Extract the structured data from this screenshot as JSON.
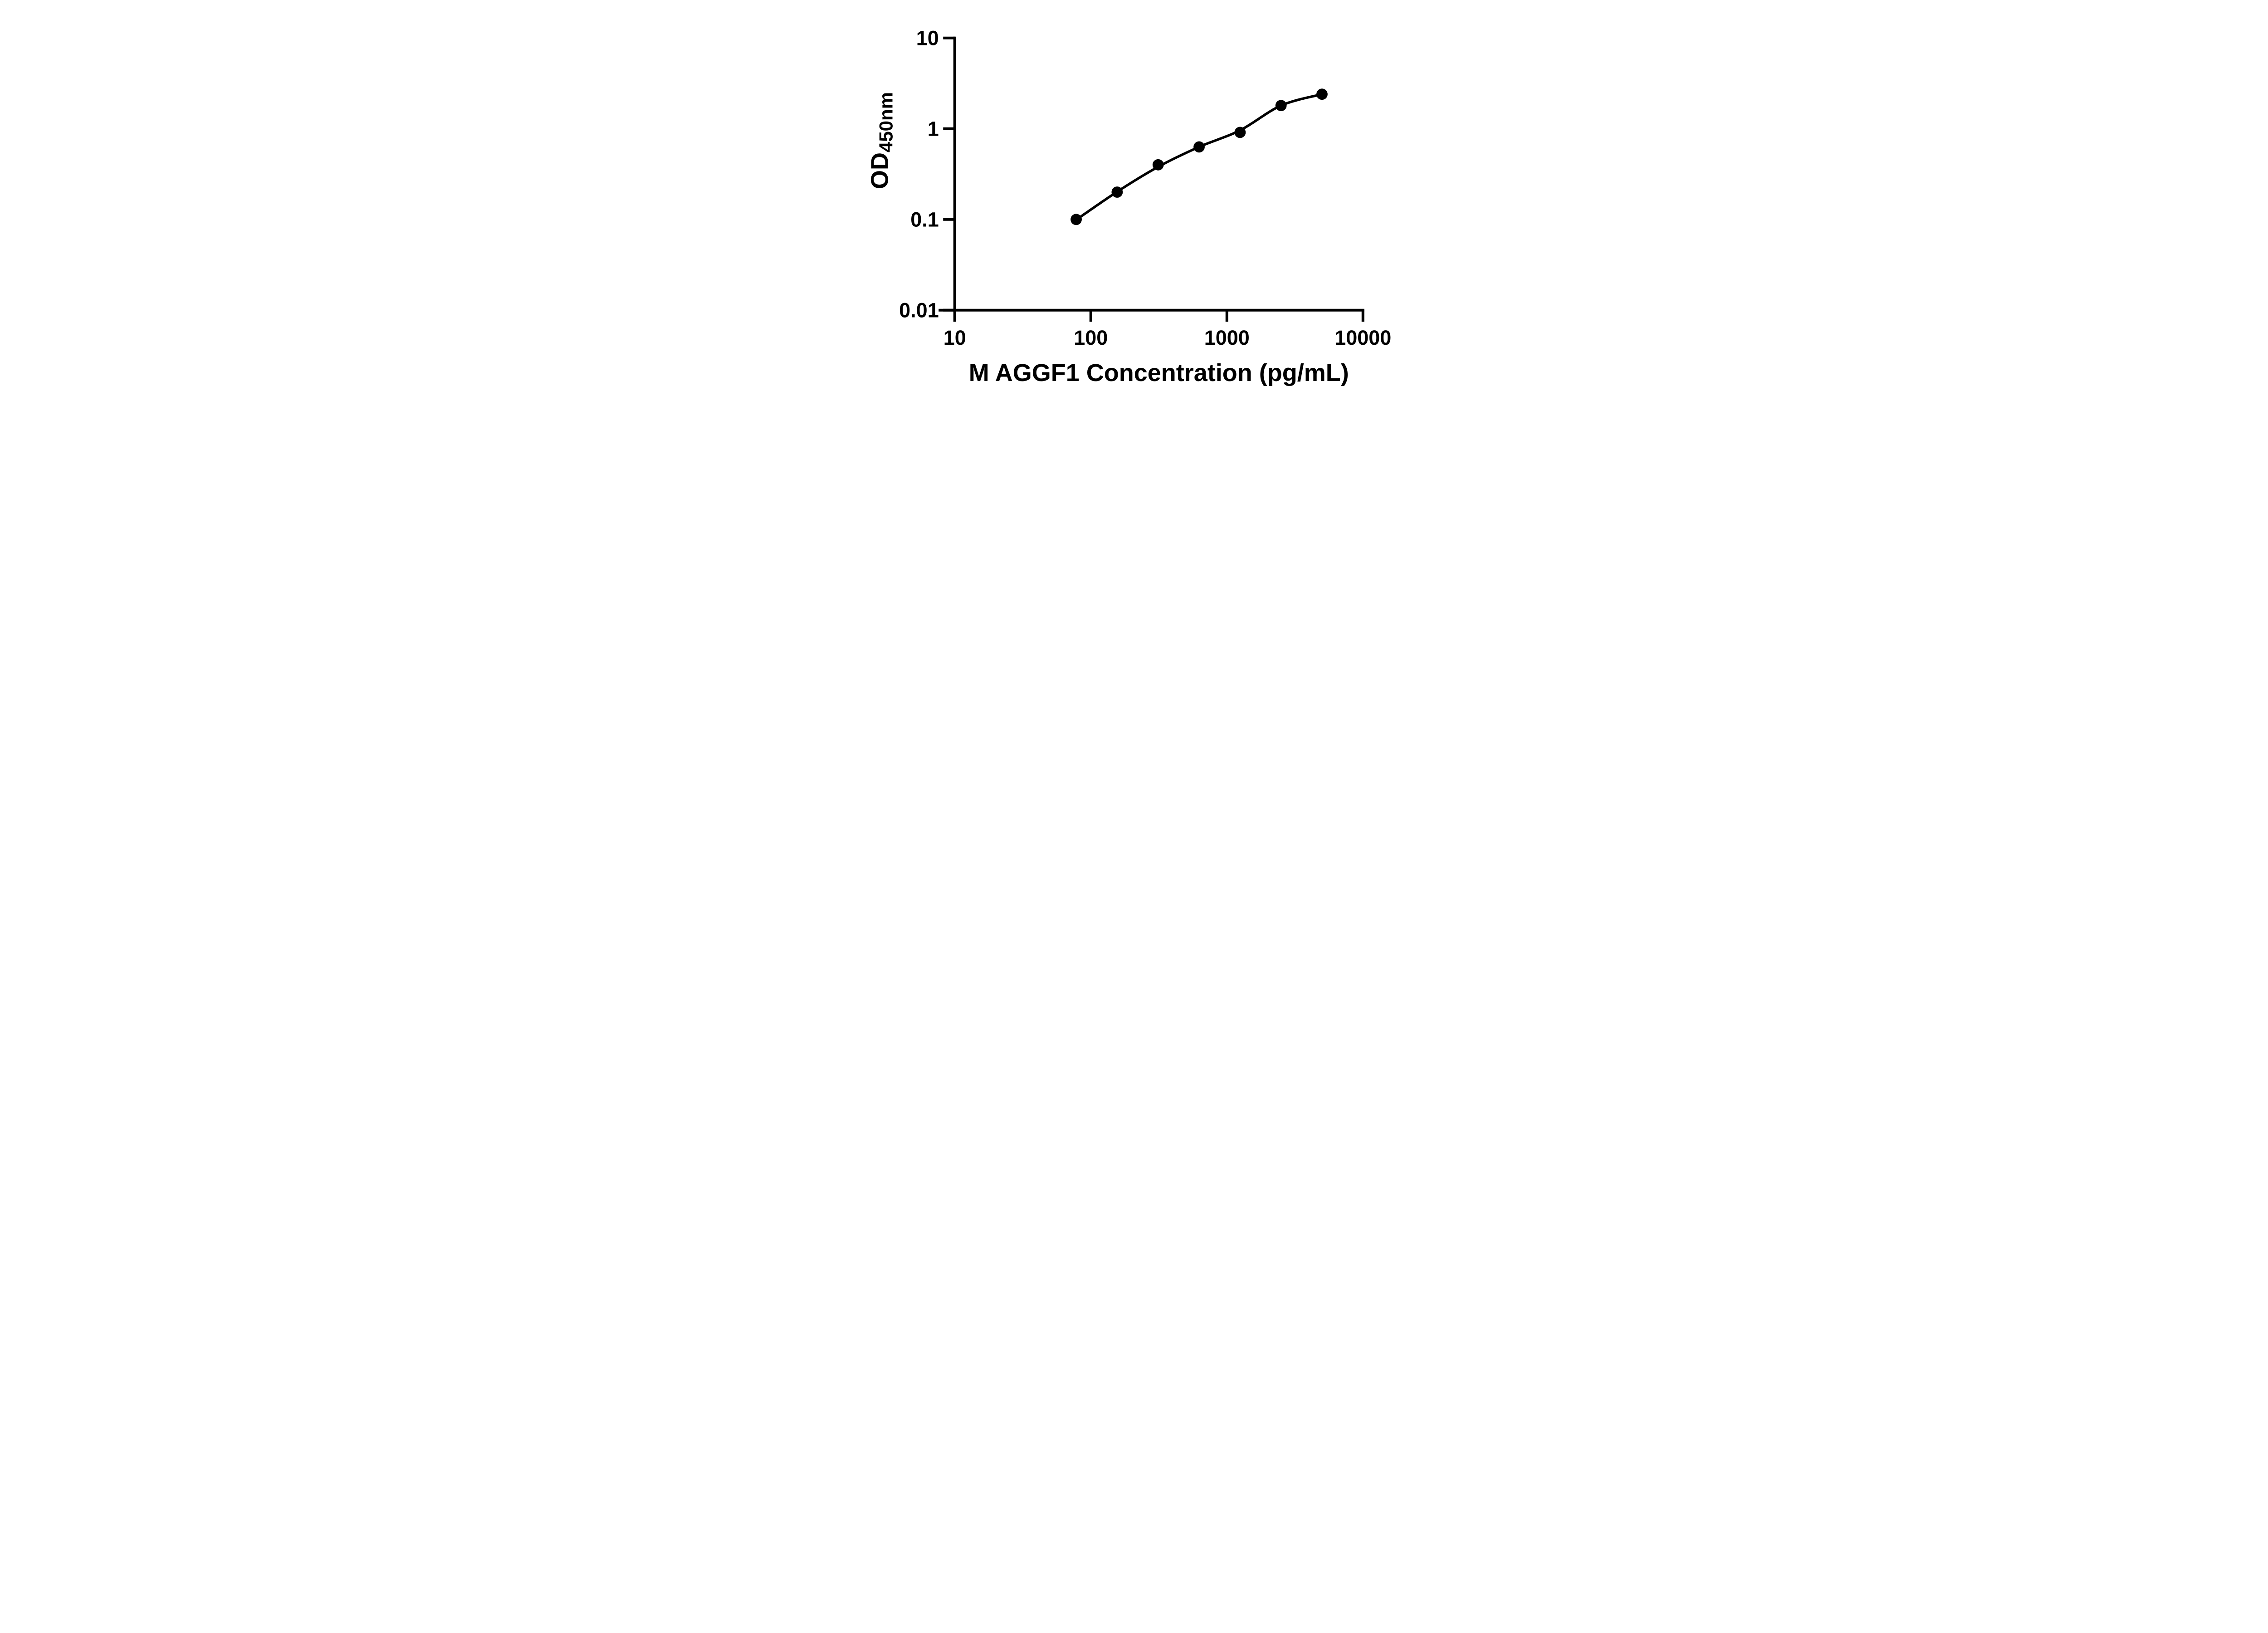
{
  "figure": {
    "background_color": "#ffffff",
    "ink_color": "#000000"
  },
  "chart_data": {
    "type": "scatter",
    "title": "",
    "xlabel": "M AGGF1 Concentration (pg/mL)",
    "ylabel": "OD",
    "ylabel_subscript": "450nm",
    "x_scale": "log10",
    "y_scale": "log10",
    "xlim": [
      10,
      10000
    ],
    "ylim": [
      0.01,
      10
    ],
    "grid": false,
    "legend": null,
    "marker": {
      "shape": "circle",
      "color": "#000000"
    },
    "line": {
      "color": "#000000",
      "style": "solid"
    },
    "x_ticks": [
      {
        "value": 10,
        "label": "10"
      },
      {
        "value": 100,
        "label": "100"
      },
      {
        "value": 1000,
        "label": "1000"
      },
      {
        "value": 10000,
        "label": "10000"
      }
    ],
    "y_ticks": [
      {
        "value": 10,
        "label": "10"
      },
      {
        "value": 1,
        "label": "1"
      },
      {
        "value": 0.1,
        "label": "0.1"
      },
      {
        "value": 0.01,
        "label": "0.01"
      }
    ],
    "points": [
      {
        "x": 78.125,
        "od": 0.1
      },
      {
        "x": 156.25,
        "od": 0.2
      },
      {
        "x": 312.5,
        "od": 0.4
      },
      {
        "x": 625,
        "od": 0.63
      },
      {
        "x": 1250,
        "od": 0.91
      },
      {
        "x": 2500,
        "od": 1.8
      },
      {
        "x": 5000,
        "od": 2.4
      }
    ],
    "fit_curve": [
      {
        "x": 78.125,
        "od": 0.099
      },
      {
        "x": 156.25,
        "od": 0.202
      },
      {
        "x": 312.5,
        "od": 0.38
      },
      {
        "x": 625,
        "od": 0.63
      },
      {
        "x": 1250,
        "od": 0.96
      },
      {
        "x": 2500,
        "od": 1.8
      },
      {
        "x": 5000,
        "od": 2.4
      }
    ]
  }
}
